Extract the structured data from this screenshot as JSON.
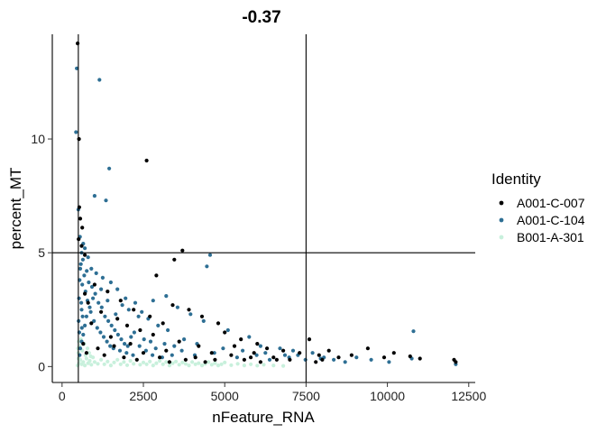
{
  "chart_data": {
    "type": "scatter",
    "title": "-0.37",
    "xlabel": "nFeature_RNA",
    "ylabel": "percent_MT",
    "xlim": [
      -300,
      12700
    ],
    "ylim": [
      -0.7,
      14.6
    ],
    "xticks": [
      0,
      2500,
      5000,
      7500,
      10000,
      12500
    ],
    "xtick_labels": [
      "0",
      "2500",
      "5000",
      "7500",
      "10000",
      "12500"
    ],
    "yticks": [
      0,
      5,
      10
    ],
    "ytick_labels": [
      "0",
      "5",
      "10"
    ],
    "grid": false,
    "legend_position": "right",
    "legend_title": "Identity",
    "reference_lines": {
      "vertical": [
        500,
        7500
      ],
      "horizontal": [
        5
      ]
    },
    "series": [
      {
        "name": "A001-C-007",
        "color": "#000000",
        "points": [
          [
            480,
            14.2
          ],
          [
            520,
            10.0
          ],
          [
            530,
            7.0
          ],
          [
            560,
            6.5
          ],
          [
            620,
            6.1
          ],
          [
            510,
            5.6
          ],
          [
            600,
            5.3
          ],
          [
            700,
            4.9
          ],
          [
            2600,
            9.05
          ],
          [
            3700,
            5.1
          ],
          [
            3450,
            4.7
          ],
          [
            2900,
            4.0
          ],
          [
            1000,
            3.6
          ],
          [
            1400,
            3.3
          ],
          [
            1800,
            2.9
          ],
          [
            2200,
            2.5
          ],
          [
            2700,
            2.2
          ],
          [
            3100,
            1.9
          ],
          [
            3400,
            2.7
          ],
          [
            3900,
            2.5
          ],
          [
            4300,
            2.2
          ],
          [
            4800,
            1.9
          ],
          [
            5000,
            1.5
          ],
          [
            5500,
            1.2
          ],
          [
            6000,
            1.0
          ],
          [
            6300,
            0.8
          ],
          [
            6800,
            0.7
          ],
          [
            7300,
            0.6
          ],
          [
            7900,
            0.5
          ],
          [
            8200,
            0.7
          ],
          [
            8500,
            0.4
          ],
          [
            8900,
            0.5
          ],
          [
            9400,
            0.8
          ],
          [
            9900,
            0.4
          ],
          [
            10200,
            0.6
          ],
          [
            10700,
            0.45
          ],
          [
            11000,
            0.35
          ],
          [
            12100,
            0.2
          ],
          [
            12050,
            0.3
          ],
          [
            7600,
            1.2
          ],
          [
            6600,
            0.3
          ],
          [
            5800,
            0.4
          ],
          [
            4600,
            0.6
          ],
          [
            4200,
            0.9
          ],
          [
            3600,
            1.1
          ],
          [
            3200,
            0.7
          ],
          [
            2800,
            1.4
          ],
          [
            2400,
            1.6
          ],
          [
            2000,
            1.8
          ],
          [
            1700,
            2.1
          ],
          [
            1500,
            1.3
          ],
          [
            1200,
            2.4
          ],
          [
            900,
            1.9
          ],
          [
            800,
            2.8
          ],
          [
            700,
            3.2
          ],
          [
            650,
            1.0
          ],
          [
            750,
            0.6
          ],
          [
            1100,
            0.8
          ],
          [
            1300,
            0.5
          ],
          [
            1600,
            0.9
          ],
          [
            1900,
            0.4
          ],
          [
            2100,
            1.0
          ],
          [
            2300,
            0.3
          ],
          [
            2500,
            0.6
          ],
          [
            3000,
            0.4
          ],
          [
            3300,
            0.2
          ],
          [
            3800,
            0.3
          ],
          [
            4100,
            0.4
          ],
          [
            4400,
            0.2
          ],
          [
            4700,
            0.3
          ],
          [
            5200,
            0.5
          ],
          [
            5600,
            0.3
          ],
          [
            6100,
            0.2
          ],
          [
            6500,
            0.4
          ],
          [
            7000,
            0.3
          ],
          [
            7800,
            0.2
          ],
          [
            8000,
            0.3
          ],
          [
            5300,
            0.9
          ],
          [
            5900,
            0.6
          ]
        ]
      },
      {
        "name": "A001-C-104",
        "color": "#2E6F94",
        "points": [
          [
            450,
            13.1
          ],
          [
            430,
            10.3
          ],
          [
            1150,
            12.6
          ],
          [
            1450,
            8.7
          ],
          [
            1000,
            7.5
          ],
          [
            1350,
            7.3
          ],
          [
            500,
            6.9
          ],
          [
            550,
            5.7
          ],
          [
            650,
            5.4
          ],
          [
            600,
            5.0
          ],
          [
            800,
            4.8
          ],
          [
            900,
            4.3
          ],
          [
            1050,
            4.1
          ],
          [
            1250,
            3.9
          ],
          [
            1500,
            3.7
          ],
          [
            1700,
            3.4
          ],
          [
            1950,
            3.0
          ],
          [
            2250,
            2.8
          ],
          [
            2450,
            2.4
          ],
          [
            2650,
            2.1
          ],
          [
            2950,
            1.8
          ],
          [
            3250,
            1.6
          ],
          [
            3550,
            2.6
          ],
          [
            3950,
            2.3
          ],
          [
            4350,
            2.0
          ],
          [
            4550,
            4.9
          ],
          [
            4450,
            4.4
          ],
          [
            5100,
            1.6
          ],
          [
            5750,
            1.3
          ],
          [
            6100,
            0.9
          ],
          [
            6700,
            0.8
          ],
          [
            7100,
            0.7
          ],
          [
            7700,
            0.6
          ],
          [
            8050,
            0.4
          ],
          [
            8350,
            0.3
          ],
          [
            9050,
            0.4
          ],
          [
            10050,
            0.2
          ],
          [
            10800,
            1.55
          ],
          [
            10750,
            0.35
          ],
          [
            12100,
            0.1
          ],
          [
            3200,
            3.1
          ],
          [
            2800,
            2.9
          ],
          [
            2350,
            2.2
          ],
          [
            2050,
            2.5
          ],
          [
            1850,
            2.7
          ],
          [
            1650,
            2.3
          ],
          [
            1400,
            2.9
          ],
          [
            1200,
            3.4
          ],
          [
            950,
            3.0
          ],
          [
            850,
            2.6
          ],
          [
            750,
            2.2
          ],
          [
            700,
            1.8
          ],
          [
            650,
            1.4
          ],
          [
            600,
            1.1
          ],
          [
            560,
            0.8
          ],
          [
            540,
            0.5
          ],
          [
            600,
            2.5
          ],
          [
            620,
            3.6
          ],
          [
            680,
            4.0
          ],
          [
            720,
            3.3
          ],
          [
            780,
            2.9
          ],
          [
            880,
            2.4
          ],
          [
            980,
            2.0
          ],
          [
            1080,
            1.7
          ],
          [
            1180,
            1.5
          ],
          [
            1280,
            1.3
          ],
          [
            1380,
            1.1
          ],
          [
            1480,
            0.9
          ],
          [
            1580,
            0.8
          ],
          [
            1780,
            0.7
          ],
          [
            1980,
            0.6
          ],
          [
            2180,
            0.5
          ],
          [
            2380,
            0.9
          ],
          [
            2580,
            0.7
          ],
          [
            2780,
            0.5
          ],
          [
            3080,
            0.4
          ],
          [
            3380,
            0.5
          ],
          [
            3680,
            0.7
          ],
          [
            4080,
            0.5
          ],
          [
            4680,
            0.6
          ],
          [
            5380,
            0.4
          ],
          [
            5980,
            0.5
          ],
          [
            6380,
            0.3
          ],
          [
            6980,
            0.4
          ],
          [
            7480,
            0.3
          ],
          [
            8700,
            0.2
          ],
          [
            9500,
            0.3
          ],
          [
            580,
            4.5
          ],
          [
            640,
            4.7
          ],
          [
            700,
            5.2
          ],
          [
            760,
            4.2
          ],
          [
            820,
            3.7
          ],
          [
            920,
            3.5
          ],
          [
            1020,
            3.2
          ],
          [
            1120,
            2.8
          ],
          [
            1220,
            2.6
          ],
          [
            1320,
            2.2
          ],
          [
            1420,
            2.0
          ],
          [
            1520,
            1.8
          ],
          [
            1620,
            1.6
          ],
          [
            1720,
            1.4
          ],
          [
            1820,
            1.2
          ],
          [
            1920,
            1.0
          ],
          [
            2020,
            0.9
          ],
          [
            2120,
            1.3
          ],
          [
            2220,
            1.5
          ],
          [
            2520,
            1.2
          ],
          [
            2720,
            1.1
          ],
          [
            2880,
            0.8
          ],
          [
            3150,
            1.0
          ],
          [
            3450,
            0.9
          ],
          [
            3750,
            1.2
          ],
          [
            4150,
            1.0
          ],
          [
            4950,
            0.8
          ],
          [
            5550,
            0.7
          ],
          [
            6250,
            0.6
          ],
          [
            6850,
            0.5
          ],
          [
            7250,
            0.5
          ],
          [
            7950,
            0.35
          ],
          [
            530,
            1.5
          ],
          [
            510,
            2.0
          ],
          [
            520,
            3.0
          ],
          [
            540,
            3.8
          ],
          [
            560,
            4.3
          ],
          [
            590,
            2.8
          ],
          [
            610,
            1.7
          ],
          [
            630,
            2.2
          ]
        ]
      },
      {
        "name": "B001-A-301",
        "color": "#C8F0DC",
        "points": [
          [
            480,
            0.05
          ],
          [
            520,
            0.15
          ],
          [
            560,
            0.3
          ],
          [
            600,
            0.1
          ],
          [
            650,
            0.2
          ],
          [
            700,
            0.05
          ],
          [
            750,
            0.35
          ],
          [
            800,
            0.15
          ],
          [
            850,
            0.25
          ],
          [
            900,
            0.08
          ],
          [
            950,
            0.4
          ],
          [
            1000,
            0.2
          ],
          [
            1100,
            0.12
          ],
          [
            1200,
            0.3
          ],
          [
            1300,
            0.1
          ],
          [
            1400,
            0.22
          ],
          [
            1500,
            0.05
          ],
          [
            1600,
            0.18
          ],
          [
            1700,
            0.3
          ],
          [
            1800,
            0.1
          ],
          [
            1900,
            0.2
          ],
          [
            2000,
            0.06
          ],
          [
            2100,
            0.25
          ],
          [
            2200,
            0.12
          ],
          [
            2300,
            0.3
          ],
          [
            2400,
            0.08
          ],
          [
            2500,
            0.18
          ],
          [
            2600,
            0.1
          ],
          [
            2700,
            0.22
          ],
          [
            2800,
            0.05
          ],
          [
            2900,
            0.15
          ],
          [
            3000,
            0.25
          ],
          [
            3100,
            0.1
          ],
          [
            3200,
            0.2
          ],
          [
            3300,
            0.05
          ],
          [
            3400,
            0.15
          ],
          [
            3500,
            0.22
          ],
          [
            3600,
            0.08
          ],
          [
            3700,
            0.18
          ],
          [
            3800,
            0.12
          ],
          [
            3900,
            0.05
          ],
          [
            4000,
            0.2
          ],
          [
            4100,
            0.1
          ],
          [
            4200,
            0.15
          ],
          [
            4300,
            0.05
          ],
          [
            4400,
            0.12
          ],
          [
            4500,
            0.2
          ],
          [
            4600,
            0.08
          ],
          [
            4700,
            0.15
          ],
          [
            4800,
            0.05
          ],
          [
            4900,
            0.1
          ],
          [
            5000,
            0.18
          ],
          [
            5200,
            0.06
          ],
          [
            5400,
            0.12
          ],
          [
            5600,
            0.05
          ],
          [
            5800,
            0.1
          ],
          [
            6000,
            0.04
          ],
          [
            6200,
            0.08
          ],
          [
            6500,
            0.05
          ],
          [
            6800,
            0.03
          ],
          [
            500,
            0.6
          ],
          [
            540,
            0.9
          ],
          [
            580,
            1.2
          ],
          [
            620,
            0.7
          ],
          [
            680,
            1.0
          ],
          [
            720,
            0.5
          ],
          [
            780,
            0.8
          ],
          [
            830,
            0.6
          ],
          [
            880,
            0.45
          ],
          [
            500,
            0.35
          ],
          [
            490,
            0.8
          ],
          [
            510,
            1.1
          ]
        ]
      }
    ]
  }
}
